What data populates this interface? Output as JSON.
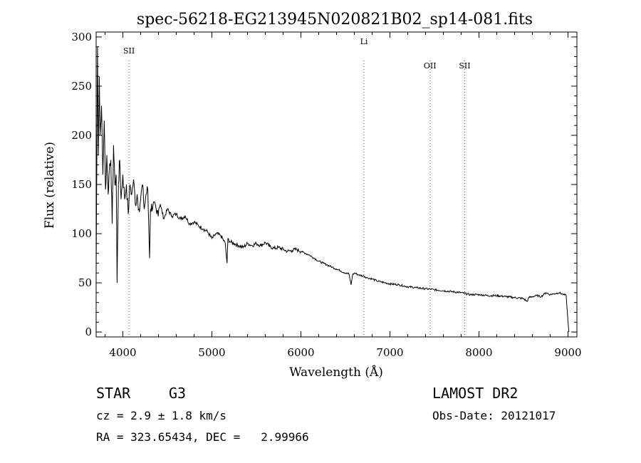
{
  "chart_data": {
    "type": "line",
    "title": "spec-56218-EG213945N020821B02_sp14-081.fits",
    "xlabel": "Wavelength (Å)",
    "ylabel": "Flux (relative)",
    "xlim": [
      3700,
      9100
    ],
    "ylim": [
      -5,
      305
    ],
    "x_ticks": [
      4000,
      5000,
      6000,
      7000,
      8000,
      9000
    ],
    "y_ticks": [
      0,
      50,
      100,
      150,
      200,
      250,
      300
    ],
    "grid": false,
    "series": [
      {
        "name": "spectrum",
        "x": [
          3700,
          3715,
          3725,
          3735,
          3745,
          3760,
          3775,
          3790,
          3805,
          3820,
          3835,
          3850,
          3865,
          3880,
          3895,
          3910,
          3925,
          3935,
          3950,
          3965,
          3980,
          4000,
          4020,
          4040,
          4060,
          4080,
          4100,
          4120,
          4140,
          4160,
          4180,
          4200,
          4220,
          4240,
          4260,
          4280,
          4290,
          4300,
          4310,
          4340,
          4380,
          4420,
          4460,
          4500,
          4550,
          4600,
          4650,
          4700,
          4750,
          4800,
          4850,
          4900,
          4950,
          5000,
          5050,
          5100,
          5150,
          5170,
          5180,
          5200,
          5250,
          5300,
          5350,
          5400,
          5450,
          5500,
          5550,
          5600,
          5650,
          5700,
          5750,
          5800,
          5850,
          5900,
          5950,
          6000,
          6050,
          6100,
          6150,
          6200,
          6250,
          6300,
          6350,
          6400,
          6450,
          6500,
          6540,
          6563,
          6580,
          6600,
          6650,
          6700,
          6750,
          6800,
          6850,
          6900,
          6950,
          7000,
          7100,
          7200,
          7300,
          7400,
          7500,
          7600,
          7700,
          7800,
          7900,
          8000,
          8100,
          8200,
          8300,
          8400,
          8500,
          8540,
          8560,
          8600,
          8650,
          8700,
          8750,
          8800,
          8850,
          8900,
          8950,
          8980,
          9000,
          9010
        ],
        "values": [
          60,
          290,
          180,
          260,
          200,
          230,
          160,
          215,
          145,
          180,
          140,
          170,
          175,
          110,
          190,
          150,
          160,
          50,
          150,
          175,
          135,
          160,
          135,
          150,
          120,
          150,
          140,
          155,
          130,
          140,
          125,
          135,
          150,
          125,
          140,
          145,
          110,
          75,
          125,
          130,
          120,
          130,
          115,
          125,
          118,
          120,
          115,
          118,
          110,
          112,
          108,
          105,
          102,
          95,
          100,
          98,
          90,
          70,
          95,
          92,
          90,
          88,
          86,
          90,
          88,
          90,
          88,
          91,
          87,
          85,
          86,
          84,
          82,
          83,
          84,
          82,
          80,
          78,
          75,
          72,
          70,
          68,
          66,
          64,
          62,
          60,
          59,
          48,
          58,
          60,
          58,
          57,
          55,
          54,
          52,
          51,
          50,
          49,
          48,
          46,
          45,
          44,
          43,
          42,
          41,
          40,
          38,
          38,
          37,
          37,
          36,
          35,
          34,
          31,
          35,
          36,
          37,
          36,
          40,
          38,
          39,
          40,
          38,
          37,
          10,
          0
        ]
      }
    ],
    "lines": [
      {
        "label": "SII",
        "x": 4069
      },
      {
        "label": "Li",
        "x": 6708
      },
      {
        "label": "OII",
        "x": 7450
      },
      {
        "label": "SII",
        "x": 7840
      }
    ]
  },
  "info": {
    "class_label": "STAR",
    "subclass": "G3",
    "survey": "LAMOST DR2",
    "cz": "cz = 2.9 ± 1.8 km/s",
    "obs_date": "Obs-Date: 20121017",
    "coords": "RA = 323.65434, DEC =   2.99966"
  }
}
